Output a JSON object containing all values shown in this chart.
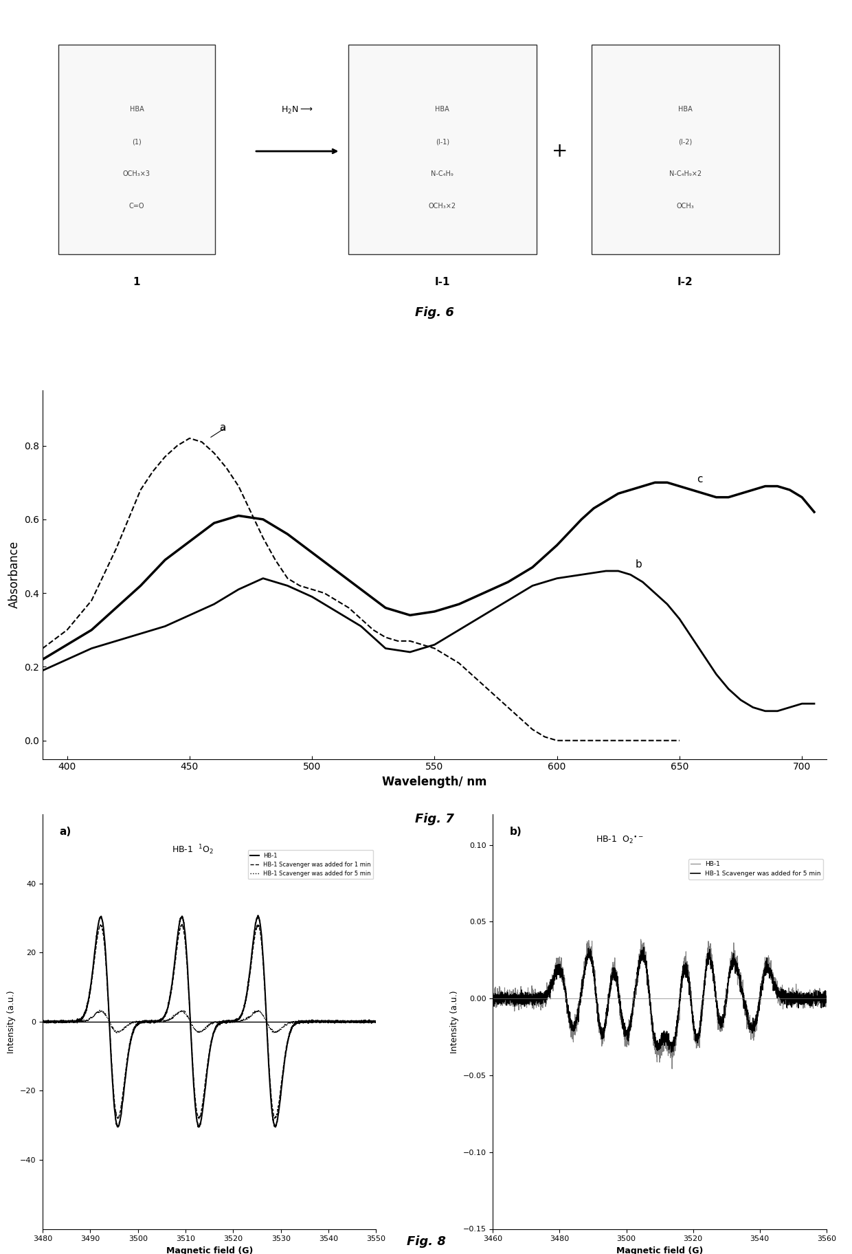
{
  "fig6_text": "Fig. 6",
  "fig7_text": "Fig. 7",
  "fig8_text": "Fig. 8",
  "fig7": {
    "xlabel": "Wavelength/ nm",
    "ylabel": "Absorbance",
    "xlim": [
      390,
      710
    ],
    "ylim": [
      -0.05,
      0.95
    ],
    "yticks": [
      0.0,
      0.2,
      0.4,
      0.6,
      0.8
    ],
    "xticks": [
      400,
      450,
      500,
      550,
      600,
      650,
      700
    ],
    "curve_a_x": [
      390,
      400,
      410,
      420,
      425,
      430,
      435,
      440,
      445,
      450,
      455,
      460,
      465,
      470,
      475,
      480,
      485,
      490,
      495,
      500,
      505,
      510,
      515,
      520,
      525,
      530,
      535,
      540,
      545,
      550,
      555,
      560,
      565,
      570,
      575,
      580,
      585,
      590,
      595,
      600,
      605,
      610,
      615,
      620,
      625,
      630,
      635,
      640,
      645,
      650
    ],
    "curve_a_y": [
      0.25,
      0.3,
      0.38,
      0.52,
      0.6,
      0.68,
      0.73,
      0.77,
      0.8,
      0.82,
      0.81,
      0.78,
      0.74,
      0.69,
      0.62,
      0.55,
      0.49,
      0.44,
      0.42,
      0.41,
      0.4,
      0.38,
      0.36,
      0.33,
      0.3,
      0.28,
      0.27,
      0.27,
      0.26,
      0.25,
      0.23,
      0.21,
      0.18,
      0.15,
      0.12,
      0.09,
      0.06,
      0.03,
      0.01,
      0.0,
      0.0,
      0.0,
      0.0,
      0.0,
      0.0,
      0.0,
      0.0,
      0.0,
      0.0,
      0.0
    ],
    "curve_b_x": [
      390,
      400,
      410,
      420,
      430,
      440,
      450,
      460,
      470,
      480,
      490,
      500,
      510,
      520,
      530,
      540,
      550,
      560,
      570,
      580,
      590,
      600,
      610,
      620,
      625,
      630,
      635,
      640,
      645,
      650,
      655,
      660,
      665,
      670,
      675,
      680,
      685,
      690,
      695,
      700,
      705
    ],
    "curve_b_y": [
      0.19,
      0.22,
      0.25,
      0.27,
      0.29,
      0.31,
      0.34,
      0.37,
      0.41,
      0.44,
      0.42,
      0.39,
      0.35,
      0.31,
      0.25,
      0.24,
      0.26,
      0.3,
      0.34,
      0.38,
      0.42,
      0.44,
      0.45,
      0.46,
      0.46,
      0.45,
      0.43,
      0.4,
      0.37,
      0.33,
      0.28,
      0.23,
      0.18,
      0.14,
      0.11,
      0.09,
      0.08,
      0.08,
      0.09,
      0.1,
      0.1
    ],
    "curve_c_x": [
      390,
      400,
      410,
      420,
      430,
      440,
      450,
      460,
      470,
      480,
      490,
      500,
      510,
      520,
      530,
      540,
      550,
      560,
      570,
      580,
      590,
      600,
      610,
      615,
      620,
      625,
      630,
      635,
      640,
      645,
      650,
      655,
      660,
      665,
      670,
      675,
      680,
      685,
      690,
      695,
      700,
      705
    ],
    "curve_c_y": [
      0.22,
      0.26,
      0.3,
      0.36,
      0.42,
      0.49,
      0.54,
      0.59,
      0.61,
      0.6,
      0.56,
      0.51,
      0.46,
      0.41,
      0.36,
      0.34,
      0.35,
      0.37,
      0.4,
      0.43,
      0.47,
      0.53,
      0.6,
      0.63,
      0.65,
      0.67,
      0.68,
      0.69,
      0.7,
      0.7,
      0.69,
      0.68,
      0.67,
      0.66,
      0.66,
      0.67,
      0.68,
      0.69,
      0.69,
      0.68,
      0.66,
      0.62
    ]
  },
  "fig8a": {
    "title": "HB-1  $^1$O$_2$",
    "xlabel": "Magnetic field (G)",
    "ylabel": "Intensity (a.u.)",
    "xlim": [
      3480,
      3550
    ],
    "ylim": [
      -60,
      60
    ],
    "yticks": [
      -40,
      -20,
      0,
      20,
      40
    ],
    "xticks": [
      3480,
      3490,
      3500,
      3510,
      3520,
      3530,
      3540,
      3550
    ],
    "legend": [
      "HB-1",
      "HB-1 Scavenger was added for 1 min",
      "HB-1 Scavenger was added for 5 min"
    ]
  },
  "fig8b": {
    "title": "HB-1  O$_2$$^{\\bullet-}$",
    "xlabel": "Magnetic field (G)",
    "ylabel": "Intensity (a.u.)",
    "xlim": [
      3460,
      3560
    ],
    "ylim": [
      -0.15,
      0.12
    ],
    "yticks": [
      -0.15,
      -0.1,
      -0.05,
      0.0,
      0.05,
      0.1
    ],
    "xticks": [
      3460,
      3480,
      3500,
      3520,
      3540,
      3560
    ],
    "legend": [
      "HB-1",
      "HB-1 Scavenger was added for 5 min"
    ]
  },
  "background_color": "#ffffff",
  "line_color_dark": "#000000",
  "line_color_gray": "#666666"
}
